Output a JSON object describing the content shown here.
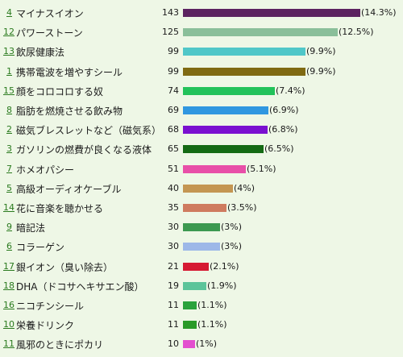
{
  "chart_data": {
    "type": "bar",
    "orientation": "horizontal",
    "xlim": [
      0,
      143
    ],
    "grid": false,
    "rows": [
      {
        "rank": "4",
        "category": "マイナスイオン",
        "count": 143,
        "pct": "(14.3%)",
        "color": "#5c2360"
      },
      {
        "rank": "12",
        "category": "パワーストーン",
        "count": 125,
        "pct": "(12.5%)",
        "color": "#8abf9a"
      },
      {
        "rank": "13",
        "category": "飲尿健康法",
        "count": 99,
        "pct": "(9.9%)",
        "color": "#4fc7c8"
      },
      {
        "rank": "1",
        "category": "携帯電波を増やすシール",
        "count": 99,
        "pct": "(9.9%)",
        "color": "#7f6a12"
      },
      {
        "rank": "15",
        "category": "顔をコロコロする奴",
        "count": 74,
        "pct": "(7.4%)",
        "color": "#22c25a"
      },
      {
        "rank": "8",
        "category": "脂肪を燃焼させる飲み物",
        "count": 69,
        "pct": "(6.9%)",
        "color": "#2f97e0"
      },
      {
        "rank": "2",
        "category": "磁気ブレスレットなど（磁気系）",
        "count": 68,
        "pct": "(6.8%)",
        "color": "#7a10d0"
      },
      {
        "rank": "3",
        "category": "ガソリンの燃費が良くなる液体",
        "count": 65,
        "pct": "(6.5%)",
        "color": "#146a14"
      },
      {
        "rank": "7",
        "category": "ホメオパシー",
        "count": 51,
        "pct": "(5.1%)",
        "color": "#e84fa8"
      },
      {
        "rank": "5",
        "category": "高級オーディオケーブル",
        "count": 40,
        "pct": "(4%)",
        "color": "#c49652"
      },
      {
        "rank": "14",
        "category": "花に音楽を聴かせる",
        "count": 35,
        "pct": "(3.5%)",
        "color": "#cf7b5f"
      },
      {
        "rank": "9",
        "category": "暗記法",
        "count": 30,
        "pct": "(3%)",
        "color": "#3c9950"
      },
      {
        "rank": "6",
        "category": "コラーゲン",
        "count": 30,
        "pct": "(3%)",
        "color": "#9db8e8"
      },
      {
        "rank": "17",
        "category": "銀イオン（臭い除去）",
        "count": 21,
        "pct": "(2.1%)",
        "color": "#d61a32"
      },
      {
        "rank": "18",
        "category": "DHA（ドコサヘキサエン酸）",
        "count": 19,
        "pct": "(1.9%)",
        "color": "#5cc49a"
      },
      {
        "rank": "16",
        "category": "ニコチンシール",
        "count": 11,
        "pct": "(1.1%)",
        "color": "#2aa23c"
      },
      {
        "rank": "10",
        "category": "栄養ドリンク",
        "count": 11,
        "pct": "(1.1%)",
        "color": "#2a9a28"
      },
      {
        "rank": "11",
        "category": "風邪のときにポカリ",
        "count": 10,
        "pct": "(1%)",
        "color": "#e34fcf"
      }
    ]
  }
}
